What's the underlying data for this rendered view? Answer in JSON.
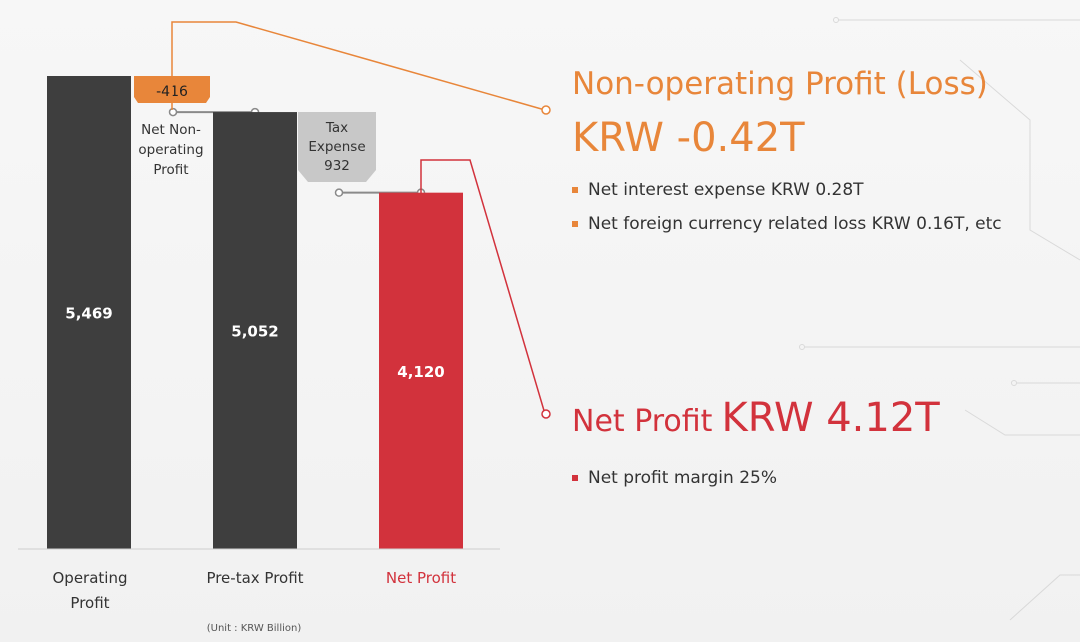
{
  "colors": {
    "dark_bar": "#3e3e3e",
    "red": "#d2323c",
    "orange": "#e8863a",
    "gray_badge": "#c8c8c8",
    "connector": "#8a8a8a"
  },
  "chart_data": {
    "type": "bar",
    "subtype": "waterfall",
    "categories": [
      "Operating Profit",
      "Pre-tax Profit",
      "Net Profit"
    ],
    "values": [
      5469,
      5052,
      4120
    ],
    "value_labels": [
      "5,469",
      "5,052",
      "4,120"
    ],
    "bar_colors": [
      "#3e3e3e",
      "#3e3e3e",
      "#d2323c"
    ],
    "category_label_lines": [
      [
        "Operating",
        "Profit"
      ],
      [
        "Pre-tax Profit"
      ],
      [
        "Net Profit"
      ]
    ],
    "category_label_colors": [
      "#333333",
      "#333333",
      "#d2323c"
    ],
    "steps": [
      {
        "badge": "-416",
        "badge_color": "#e8863a",
        "badge_text_color": "#222222",
        "label_lines": [
          "Net Non-",
          "operating",
          "Profit"
        ]
      },
      {
        "badge_lines": [
          "Tax",
          "Expense",
          "932"
        ],
        "badge_color": "#c8c8c8",
        "badge_text_color": "#333333"
      }
    ],
    "unit_label": "(Unit : KRW Billion)",
    "ylim": [
      0,
      5469
    ],
    "grid": false,
    "legend": "none"
  },
  "panel": {
    "nonop": {
      "title": "Non-operating Profit (Loss)",
      "value": "KRW -0.42T",
      "bullets": [
        "Net interest expense KRW 0.28T",
        "Net foreign currency related loss KRW 0.16T, etc"
      ]
    },
    "net": {
      "title": "Net Profit",
      "value": "KRW 4.12T",
      "bullets": [
        "Net profit margin 25%"
      ]
    }
  }
}
